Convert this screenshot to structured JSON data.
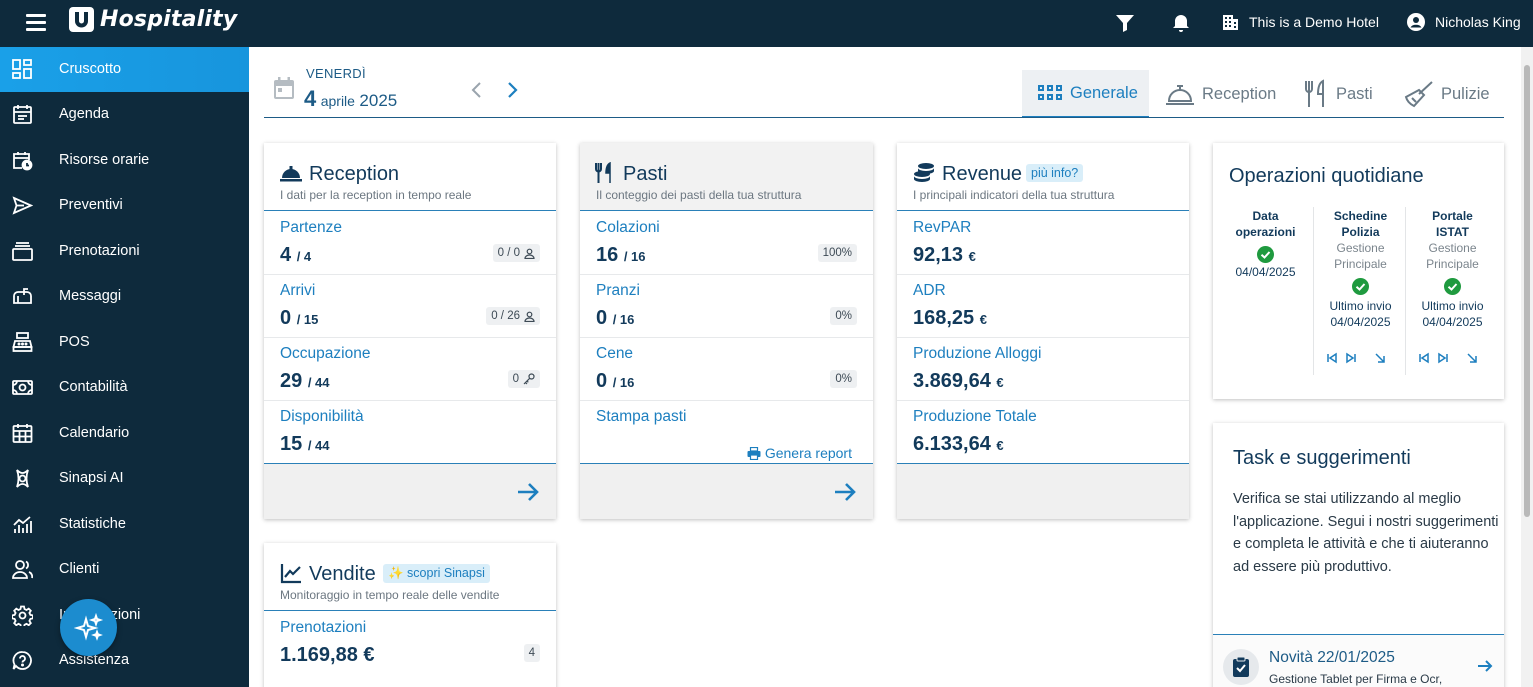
{
  "app": {
    "title": "Hospitality"
  },
  "topbar": {
    "hotel": "This is a Demo Hotel",
    "user": "Nicholas King"
  },
  "sidebar": {
    "items": [
      {
        "label": "Cruscotto"
      },
      {
        "label": "Agenda"
      },
      {
        "label": "Risorse orarie"
      },
      {
        "label": "Preventivi"
      },
      {
        "label": "Prenotazioni"
      },
      {
        "label": "Messaggi"
      },
      {
        "label": "POS"
      },
      {
        "label": "Contabilità"
      },
      {
        "label": "Calendario"
      },
      {
        "label": "Sinapsi AI"
      },
      {
        "label": "Statistiche"
      },
      {
        "label": "Clienti"
      },
      {
        "label": "Impostazioni"
      },
      {
        "label": "Assistenza"
      }
    ]
  },
  "date": {
    "weekday": "VENERDÌ",
    "day": "4",
    "month": "aprile",
    "year": "2025"
  },
  "tabs": [
    {
      "label": "Generale"
    },
    {
      "label": "Reception"
    },
    {
      "label": "Pasti"
    },
    {
      "label": "Pulizie"
    }
  ],
  "reception": {
    "title": "Reception",
    "subtitle": "I dati per la reception in tempo reale",
    "metrics": [
      {
        "label": "Partenze",
        "value": "4",
        "total": "/ 4",
        "badge": "0 / 0"
      },
      {
        "label": "Arrivi",
        "value": "0",
        "total": "/ 15",
        "badge": "0 / 26"
      },
      {
        "label": "Occupazione",
        "value": "29",
        "total": "/ 44",
        "badge": "0"
      },
      {
        "label": "Disponibilità",
        "value": "15",
        "total": "/ 44"
      }
    ]
  },
  "pasti": {
    "title": "Pasti",
    "subtitle": "Il conteggio dei pasti della tua struttura",
    "metrics": [
      {
        "label": "Colazioni",
        "value": "16",
        "total": "/ 16",
        "badge": "100%"
      },
      {
        "label": "Pranzi",
        "value": "0",
        "total": "/ 16",
        "badge": "0%"
      },
      {
        "label": "Cene",
        "value": "0",
        "total": "/ 16",
        "badge": "0%"
      }
    ],
    "print_label": "Stampa pasti",
    "report_label": "Genera report"
  },
  "revenue": {
    "title": "Revenue",
    "chip": "più info?",
    "subtitle": "I principali indicatori della tua struttura",
    "metrics": [
      {
        "label": "RevPAR",
        "value": "92,13",
        "unit": "€"
      },
      {
        "label": "ADR",
        "value": "168,25",
        "unit": "€"
      },
      {
        "label": "Produzione Alloggi",
        "value": "3.869,64",
        "unit": "€"
      },
      {
        "label": "Produzione Totale",
        "value": "6.133,64",
        "unit": "€"
      }
    ]
  },
  "vendite": {
    "title": "Vendite",
    "chip": "✨ scopri Sinapsi",
    "subtitle": "Monitoraggio in tempo reale delle vendite",
    "metrics": [
      {
        "label": "Prenotazioni",
        "value": "1.169,88 €",
        "badge": "4"
      }
    ]
  },
  "operazioni": {
    "title": "Operazioni quotidiane",
    "cols": [
      {
        "h1": "Data",
        "h2": "operazioni",
        "date": "04/04/2025"
      },
      {
        "h1": "Schedine",
        "h2": "Polizia",
        "g1": "Gestione",
        "g2": "Principale",
        "last": "Ultimo invio",
        "date": "04/04/2025"
      },
      {
        "h1": "Portale",
        "h2": "ISTAT",
        "g1": "Gestione",
        "g2": "Principale",
        "last": "Ultimo invio",
        "date": "04/04/2025"
      }
    ]
  },
  "task": {
    "title": "Task e suggerimenti",
    "text": "Verifica se stai utilizzando al meglio l'applicazione. Segui i nostri suggerimenti e completa le attività e che ti aiuteranno ad essere più produttivo.",
    "news_title": "Novità 22/01/2025",
    "news_sub": "Gestione Tablet per Firma e Ocr,"
  },
  "colors": {
    "sidebar_bg": "#0e2a3c",
    "accent": "#1d7fbf",
    "active_item": "#1aa0e8",
    "check_green": "#1f9a3f"
  }
}
